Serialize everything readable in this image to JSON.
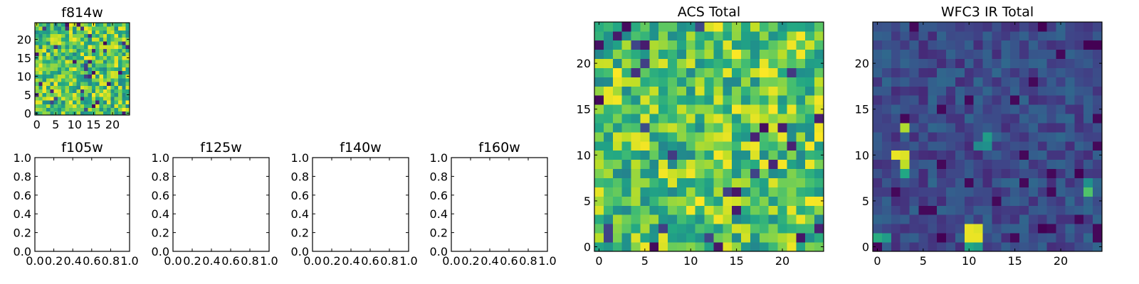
{
  "chart_data": [
    {
      "id": "f814w",
      "type": "heatmap",
      "title": "f814w",
      "colormap": "viridis",
      "grid_size": 25,
      "xlim": [
        -0.5,
        24.5
      ],
      "ylim": [
        -0.5,
        24.5
      ],
      "xticks": [
        "0",
        "5",
        "10",
        "15",
        "20"
      ],
      "yticks": [
        "0",
        "5",
        "10",
        "15",
        "20"
      ],
      "pattern": "mostly_high_noise"
    },
    {
      "id": "f105w",
      "type": "heatmap",
      "title": "f105w",
      "empty": true,
      "xlim": [
        0,
        1
      ],
      "ylim": [
        0,
        1
      ],
      "xticks": [
        "0.0",
        "0.2",
        "0.4",
        "0.6",
        "0.8",
        "1.0"
      ],
      "yticks": [
        "0.0",
        "0.2",
        "0.4",
        "0.6",
        "0.8",
        "1.0"
      ]
    },
    {
      "id": "f125w",
      "type": "heatmap",
      "title": "f125w",
      "empty": true,
      "xlim": [
        0,
        1
      ],
      "ylim": [
        0,
        1
      ],
      "xticks": [
        "0.0",
        "0.2",
        "0.4",
        "0.6",
        "0.8",
        "1.0"
      ],
      "yticks": [
        "0.0",
        "0.2",
        "0.4",
        "0.6",
        "0.8",
        "1.0"
      ]
    },
    {
      "id": "f140w",
      "type": "heatmap",
      "title": "f140w",
      "empty": true,
      "xlim": [
        0,
        1
      ],
      "ylim": [
        0,
        1
      ],
      "xticks": [
        "0.0",
        "0.2",
        "0.4",
        "0.6",
        "0.8",
        "1.0"
      ],
      "yticks": [
        "0.0",
        "0.2",
        "0.4",
        "0.6",
        "0.8",
        "1.0"
      ]
    },
    {
      "id": "f160w",
      "type": "heatmap",
      "title": "f160w",
      "empty": true,
      "xlim": [
        0,
        1
      ],
      "ylim": [
        0,
        1
      ],
      "xticks": [
        "0.0",
        "0.2",
        "0.4",
        "0.6",
        "0.8",
        "1.0"
      ],
      "yticks": [
        "0.0",
        "0.2",
        "0.4",
        "0.6",
        "0.8",
        "1.0"
      ]
    },
    {
      "id": "acs_total",
      "type": "heatmap",
      "title": "ACS Total",
      "colormap": "viridis",
      "grid_size": 25,
      "xlim": [
        -0.5,
        24.5
      ],
      "ylim": [
        -0.5,
        24.5
      ],
      "xticks": [
        "0",
        "5",
        "10",
        "15",
        "20"
      ],
      "yticks": [
        "0",
        "5",
        "10",
        "15",
        "20"
      ],
      "pattern": "mostly_high_noise"
    },
    {
      "id": "wfc3_ir_total",
      "type": "heatmap",
      "title": "WFC3 IR Total",
      "colormap": "viridis",
      "grid_size": 25,
      "xlim": [
        -0.5,
        24.5
      ],
      "ylim": [
        -0.5,
        24.5
      ],
      "xticks": [
        "0",
        "5",
        "10",
        "15",
        "20"
      ],
      "yticks": [
        "0",
        "5",
        "10",
        "15",
        "20"
      ],
      "pattern": "low_background_with_bright_sources",
      "bright_sources": [
        {
          "x": 10,
          "y": 1,
          "value": 0.97
        },
        {
          "x": 11,
          "y": 1,
          "value": 0.97
        },
        {
          "x": 10,
          "y": 2,
          "value": 0.97
        },
        {
          "x": 11,
          "y": 2,
          "value": 0.95
        },
        {
          "x": 10,
          "y": 0,
          "value": 0.6
        },
        {
          "x": 11,
          "y": 0,
          "value": 0.55
        },
        {
          "x": 2,
          "y": 10,
          "value": 0.97
        },
        {
          "x": 3,
          "y": 10,
          "value": 0.95
        },
        {
          "x": 3,
          "y": 9,
          "value": 0.9
        },
        {
          "x": 3,
          "y": 8,
          "value": 0.6
        },
        {
          "x": 3,
          "y": 13,
          "value": 0.88
        },
        {
          "x": 0,
          "y": 1,
          "value": 0.62
        },
        {
          "x": 1,
          "y": 1,
          "value": 0.55
        },
        {
          "x": 23,
          "y": 6,
          "value": 0.72
        },
        {
          "x": 23,
          "y": 7,
          "value": 0.5
        },
        {
          "x": 12,
          "y": 12,
          "value": 0.55
        },
        {
          "x": 11,
          "y": 11,
          "value": 0.48
        },
        {
          "x": 12,
          "y": 11,
          "value": 0.5
        }
      ],
      "dark_sources": [
        {
          "x": 23,
          "y": 22,
          "value": 0.0
        },
        {
          "x": 24,
          "y": 22,
          "value": 0.0
        },
        {
          "x": 18,
          "y": 24,
          "value": 0.0
        },
        {
          "x": 22,
          "y": 8,
          "value": 0.0
        },
        {
          "x": 7,
          "y": 1,
          "value": 0.0
        },
        {
          "x": 18,
          "y": 2,
          "value": 0.0
        }
      ]
    }
  ]
}
